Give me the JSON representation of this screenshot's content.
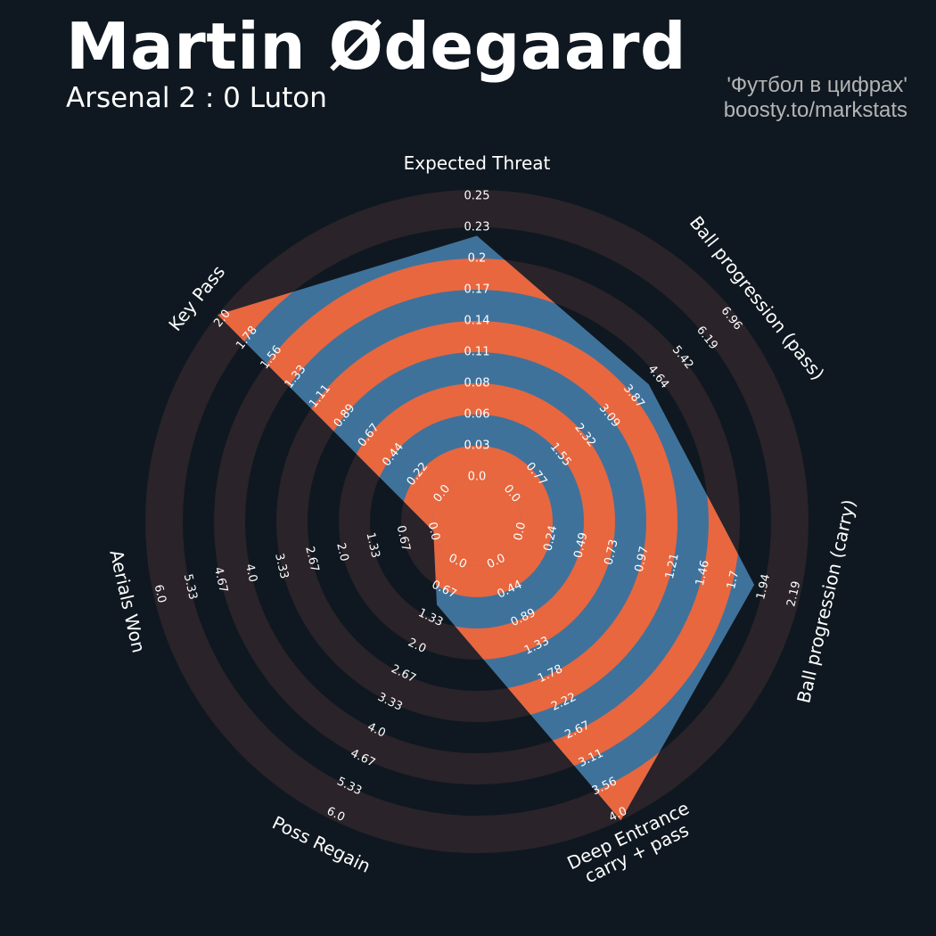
{
  "header": {
    "title": "Martin Ødegaard",
    "subtitle": "Arsenal 2 : 0 Luton",
    "credit_line1": "'Футбол в цифрах'",
    "credit_line2": "boosty.to/markstats"
  },
  "colors": {
    "background": "#0f1820",
    "ring_band": "#2a2329",
    "polygon_fill": "#3f729b",
    "polygon_band": "#e8673f",
    "text": "#ffffff",
    "credit_text": "#b4b4b4"
  },
  "chart_data": {
    "type": "radar",
    "title": "Martin Ødegaard",
    "subtitle": "Arsenal 2 : 0 Luton",
    "params": [
      {
        "name": "Expected Threat",
        "min": 0.0,
        "max": 0.25,
        "value": 0.21,
        "ticks": [
          "0.0",
          "0.03",
          "0.06",
          "0.08",
          "0.11",
          "0.14",
          "0.17",
          "0.2",
          "0.23",
          "0.25"
        ]
      },
      {
        "name": "Ball progression (pass)",
        "min": 0.0,
        "max": 6.96,
        "value": 4.25,
        "ticks": [
          "0.0",
          "0.77",
          "1.55",
          "2.32",
          "3.09",
          "3.87",
          "4.64",
          "5.42",
          "6.19",
          "6.96"
        ]
      },
      {
        "name": "Ball progression (carry)",
        "min": 0.0,
        "max": 2.19,
        "value": 1.83,
        "ticks": [
          "0.0",
          "0.24",
          "0.49",
          "0.73",
          "0.97",
          "1.21",
          "1.46",
          "1.7",
          "1.94",
          "2.19"
        ]
      },
      {
        "name": "Deep Entrance\ncarry + pass",
        "min": 0.0,
        "max": 4.0,
        "value": 4.0,
        "ticks": [
          "0.0",
          "0.44",
          "0.89",
          "1.33",
          "1.78",
          "2.22",
          "2.67",
          "3.11",
          "3.56",
          "4.0"
        ]
      },
      {
        "name": "Poss Regain",
        "min": 0.0,
        "max": 6.0,
        "value": 1.0,
        "ticks": [
          "0.0",
          "0.67",
          "1.33",
          "2.0",
          "2.67",
          "3.33",
          "4.0",
          "4.67",
          "5.33",
          "6.0"
        ]
      },
      {
        "name": "Aerials Won",
        "min": 0.0,
        "max": 6.0,
        "value": 0.0,
        "ticks": [
          "0.0",
          "0.67",
          "1.33",
          "2.0",
          "2.67",
          "3.33",
          "4.0",
          "4.67",
          "5.33",
          "6.0"
        ]
      },
      {
        "name": "Key Pass",
        "min": 0.0,
        "max": 2.0,
        "value": 2.0,
        "ticks": [
          "0.0",
          "0.22",
          "0.44",
          "0.67",
          "0.89",
          "1.11",
          "1.33",
          "1.56",
          "1.78",
          "2.0"
        ]
      }
    ]
  }
}
